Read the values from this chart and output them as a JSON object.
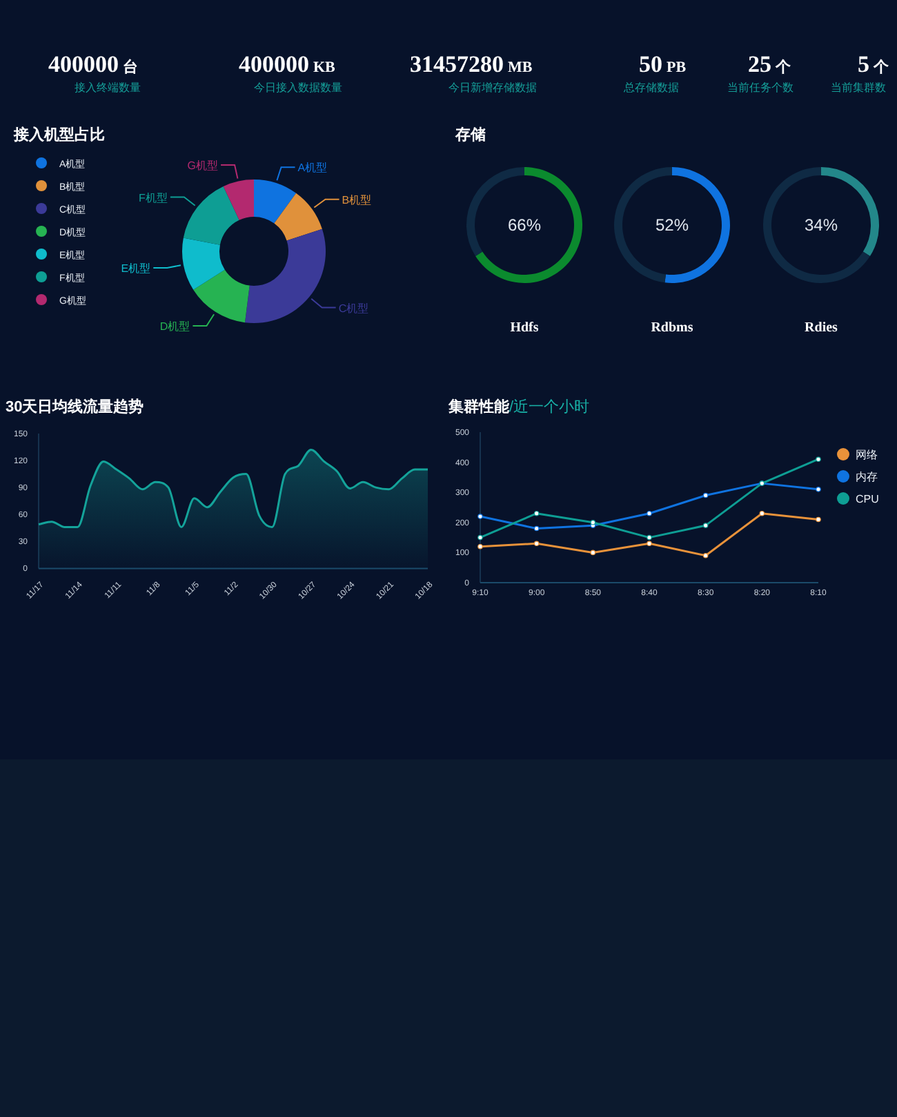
{
  "chart_data": [
    {
      "type": "other",
      "categories": [
        "接入终端数量",
        "今日接入数据数量",
        "今日新增存储数据",
        "总存储数据",
        "当前任务个数",
        "当前集群数"
      ],
      "values": [
        400000,
        400000,
        31457280,
        50,
        25,
        5
      ],
      "annotations": [
        "台",
        "KB",
        "MB",
        "PB",
        "个",
        "个"
      ],
      "data_labels": true
    },
    {
      "type": "donut",
      "title": "接入机型占比",
      "categories": [
        "A机型",
        "B机型",
        "C机型",
        "D机型",
        "E机型",
        "F机型",
        "G机型"
      ],
      "values": [
        10,
        10,
        32,
        14,
        12,
        15,
        7
      ],
      "colors": [
        "#0f73e0",
        "#e0913b",
        "#3b3a98",
        "#26b352",
        "#0fbccc",
        "#0e9e94",
        "#b3296f"
      ],
      "legend": "left"
    },
    {
      "type": "donut",
      "title": "存储",
      "subtitle": "Hdfs",
      "categories": [
        null,
        null
      ],
      "values": [
        66,
        34
      ],
      "colors": [
        "#0b8a2e",
        "#0f2a44"
      ],
      "annotations": [
        "66%"
      ]
    },
    {
      "type": "donut",
      "subtitle": "Rdbms",
      "categories": [
        null,
        null
      ],
      "values": [
        52,
        48
      ],
      "colors": [
        "#0f73e0",
        "#0f2a44"
      ],
      "annotations": [
        "52%"
      ]
    },
    {
      "type": "donut",
      "subtitle": "Rdies",
      "categories": [
        null,
        null
      ],
      "values": [
        34,
        66
      ],
      "colors": [
        "#23878a",
        "#0f2a44"
      ],
      "annotations": [
        "34%"
      ]
    },
    {
      "type": "area",
      "title": "30天日均线流量趋势",
      "categories": [
        "11/17",
        null,
        null,
        "11/14",
        null,
        null,
        "11/11",
        null,
        null,
        "11/8",
        null,
        null,
        "11/5",
        null,
        null,
        "11/2",
        null,
        null,
        "10/30",
        null,
        null,
        "10/27",
        null,
        null,
        "10/24",
        null,
        null,
        "10/21",
        null,
        null,
        "10/18"
      ],
      "series": [
        {
          "color": "#14a39a",
          "values": [
            49,
            52,
            46,
            46,
            92,
            119,
            110,
            100,
            88,
            96,
            90,
            46,
            78,
            68,
            85,
            101,
            105,
            59,
            46,
            105,
            114,
            132,
            119,
            108,
            89,
            96,
            90,
            88,
            100,
            110,
            110
          ]
        }
      ],
      "ylim": [
        0,
        150
      ],
      "yticks": [
        0,
        30,
        60,
        90,
        120,
        150
      ]
    },
    {
      "type": "line",
      "title": "集群性能",
      "subtitle": "/近一个小时",
      "categories": [
        "9:10",
        "9:00",
        "8:50",
        "8:40",
        "8:30",
        "8:20",
        "8:10"
      ],
      "series": [
        {
          "name": "网络",
          "color": "#e8923a",
          "values": [
            120,
            130,
            100,
            130,
            90,
            230,
            210
          ]
        },
        {
          "name": "内存",
          "color": "#0f73e0",
          "values": [
            220,
            180,
            190,
            230,
            290,
            330,
            310
          ]
        },
        {
          "name": "CPU",
          "color": "#0e9e94",
          "values": [
            150,
            230,
            200,
            150,
            190,
            330,
            410
          ]
        }
      ],
      "ylim": [
        0,
        500
      ],
      "yticks": [
        0,
        100,
        200,
        300,
        400,
        500
      ],
      "marker": "circle",
      "legend": "right"
    }
  ]
}
